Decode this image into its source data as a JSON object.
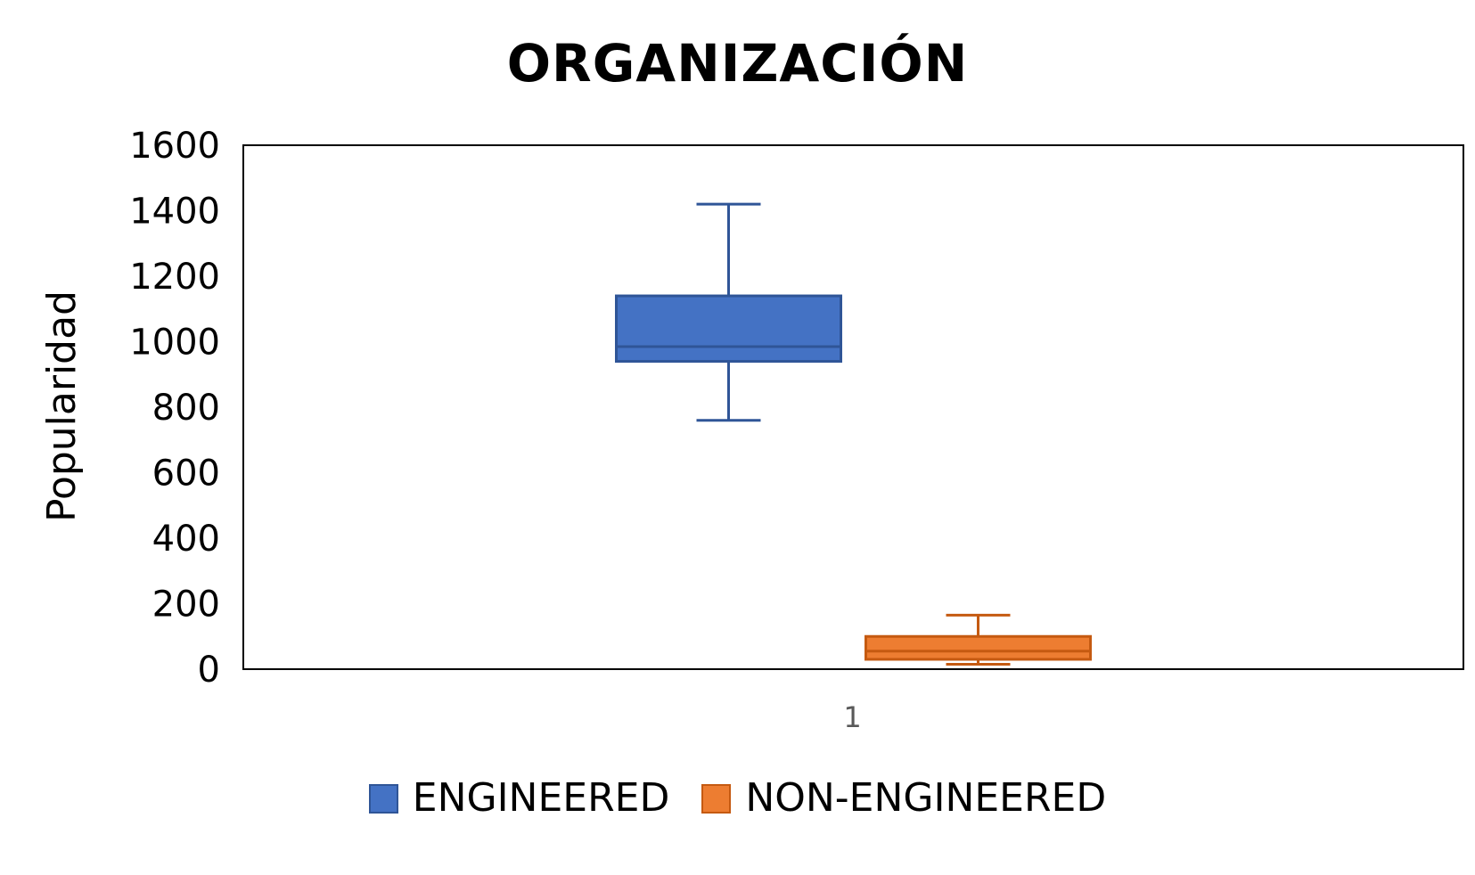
{
  "chart_data": {
    "type": "box",
    "title": "ORGANIZACIÓN",
    "ylabel": "Popularidad",
    "xlabel": "",
    "categories": [
      "1"
    ],
    "ylim": [
      0,
      1600
    ],
    "yticks": [
      0,
      200,
      400,
      600,
      800,
      1000,
      1200,
      1400,
      1600
    ],
    "grid": false,
    "legend_position": "bottom",
    "series": [
      {
        "name": "ENGINEERED",
        "color": "#4472C4",
        "edge_color": "#2F5597",
        "min": 760,
        "q1": 940,
        "median": 985,
        "q3": 1140,
        "max": 1420
      },
      {
        "name": "NON-ENGINEERED",
        "color": "#ED7D31",
        "edge_color": "#C55A11",
        "min": 15,
        "q1": 30,
        "median": 55,
        "q3": 100,
        "max": 165
      }
    ]
  }
}
